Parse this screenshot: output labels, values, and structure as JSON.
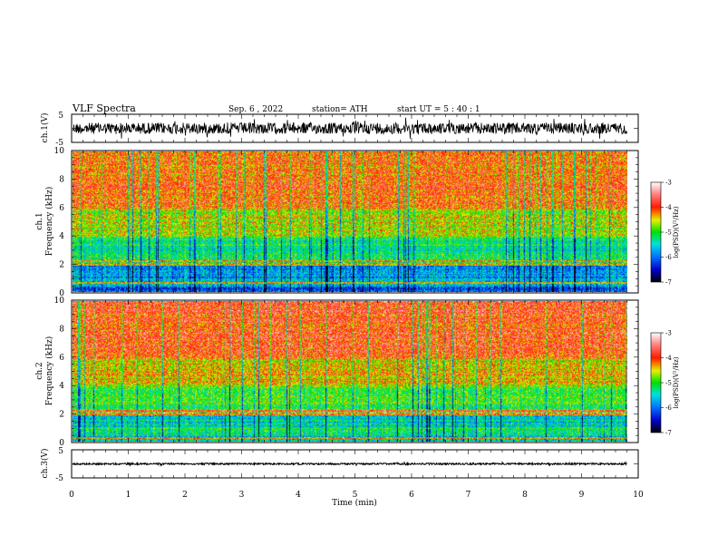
{
  "header": {
    "title": "VLF  Spectra",
    "date": "Sep. 6  , 2022",
    "station": "station= ATH",
    "start": "start  UT  =    5  : 40 : 1"
  },
  "chart_data": [
    {
      "type": "line",
      "panel": "ch1-waveform",
      "ylabel": "ch.1(V)",
      "ylim": [
        -5,
        5
      ],
      "yticks": [
        "5",
        "-5"
      ],
      "xlim": [
        0,
        10
      ],
      "data_end_min": 9.8,
      "level": 0,
      "amplitude": 2,
      "color": "#000000"
    },
    {
      "type": "heatmap",
      "panel": "ch1-spectrogram",
      "ylabel_top": "ch.1",
      "ylabel": "Frequency  (kHz)",
      "ylim": [
        0,
        10
      ],
      "yticks": [
        "0",
        "2",
        "4",
        "6",
        "8",
        "10"
      ],
      "xlim": [
        0,
        10
      ],
      "data_end_min": 9.8,
      "colorbar": {
        "label": "log(PSD)(V²/Hz)",
        "ticks": [
          "-3",
          "-4",
          "-5",
          "-6",
          "-7"
        ],
        "range": [
          -7,
          -3
        ]
      },
      "bands_khz": [
        {
          "from": 0,
          "to": 0.4,
          "level": -6.2
        },
        {
          "from": 0.4,
          "to": 1,
          "level": -5.6
        },
        {
          "from": 1,
          "to": 2,
          "level": -5.8
        },
        {
          "from": 2,
          "to": 4,
          "level": -5.2
        },
        {
          "from": 4,
          "to": 6,
          "level": -4.6
        },
        {
          "from": 6,
          "to": 10,
          "level": -4.1
        }
      ],
      "tones_khz": [
        0.7,
        2.0,
        2.2
      ]
    },
    {
      "type": "heatmap",
      "panel": "ch2-spectrogram",
      "ylabel_top": "ch.2",
      "ylabel": "Frequency  (kHz)",
      "ylim": [
        0,
        10
      ],
      "yticks": [
        "0",
        "2",
        "4",
        "6",
        "8",
        "10"
      ],
      "xlim": [
        0,
        10
      ],
      "data_end_min": 9.8,
      "colorbar": {
        "label": "log(PSD)(V²/Hz)",
        "ticks": [
          "-3",
          "-4",
          "-5",
          "-6",
          "-7"
        ],
        "range": [
          -7,
          -3
        ]
      },
      "bands_khz": [
        {
          "from": 0,
          "to": 0.4,
          "level": -5.6
        },
        {
          "from": 0.4,
          "to": 1,
          "level": -5.2
        },
        {
          "from": 1,
          "to": 2,
          "level": -5.4
        },
        {
          "from": 2,
          "to": 4,
          "level": -5.0
        },
        {
          "from": 4,
          "to": 6,
          "level": -4.4
        },
        {
          "from": 6,
          "to": 10,
          "level": -3.9
        }
      ],
      "tones_khz": [
        0.3,
        2.0,
        2.2
      ]
    },
    {
      "type": "line",
      "panel": "ch3-waveform",
      "ylabel": "ch.3(V)",
      "ylim": [
        -5,
        5
      ],
      "yticks": [
        "5",
        "-5"
      ],
      "xlim": [
        0,
        10
      ],
      "xlabel": "Time  (min)",
      "xticks": [
        "0",
        "1",
        "2",
        "3",
        "4",
        "5",
        "6",
        "7",
        "8",
        "9",
        "10"
      ],
      "data_end_min": 9.8,
      "level": 0,
      "amplitude": 0.3,
      "color": "#000000"
    }
  ]
}
